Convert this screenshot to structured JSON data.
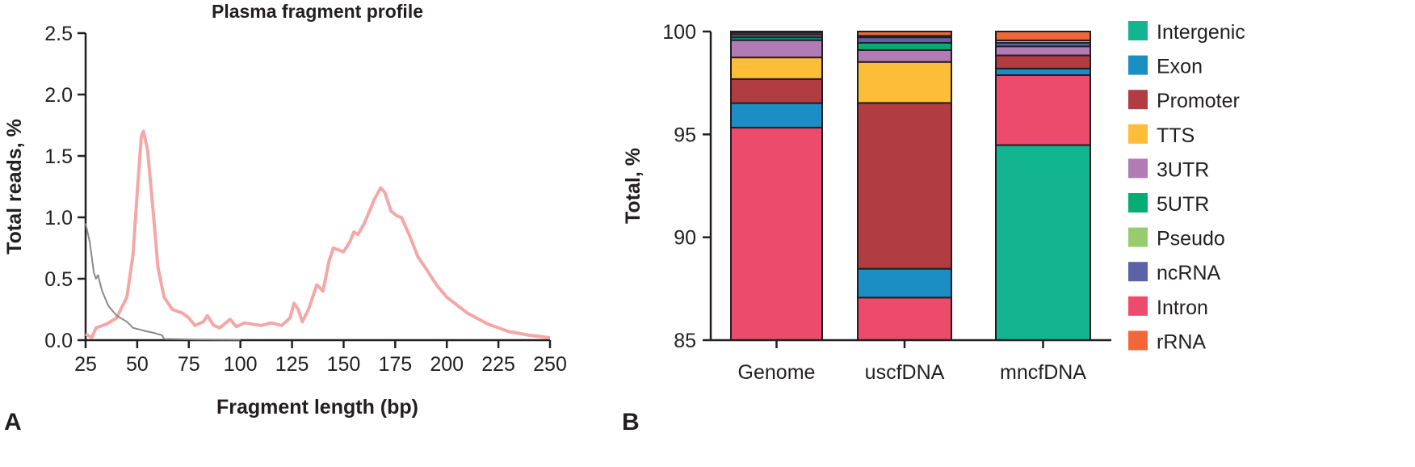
{
  "chart_data": [
    {
      "panel": "A",
      "type": "line",
      "title": "Plasma fragment profile",
      "xlabel": "Fragment length (bp)",
      "ylabel": "Total reads, %",
      "xlim": [
        25,
        250
      ],
      "ylim": [
        0,
        2.5
      ],
      "xticks": [
        "25",
        "50",
        "75",
        "100",
        "125",
        "150",
        "175",
        "200",
        "225",
        "250"
      ],
      "yticks": [
        "0.0",
        "0.5",
        "1.0",
        "1.5",
        "2.0",
        "2.5"
      ],
      "grid": false,
      "series": [
        {
          "color": "#f4a7a7",
          "x": [
            25,
            27,
            28,
            30,
            35,
            40,
            45,
            48,
            50,
            52,
            53,
            55,
            58,
            60,
            63,
            67,
            72,
            75,
            78,
            82,
            84,
            87,
            90,
            95,
            98,
            102,
            110,
            115,
            120,
            124,
            126,
            128,
            130,
            133,
            137,
            140,
            143,
            145,
            150,
            153,
            155,
            157,
            160,
            165,
            168,
            170,
            173,
            176,
            178,
            182,
            186,
            190,
            195,
            200,
            210,
            220,
            230,
            240,
            250
          ],
          "y": [
            0.05,
            0.03,
            0.02,
            0.1,
            0.13,
            0.18,
            0.35,
            0.7,
            1.2,
            1.66,
            1.7,
            1.55,
            1.0,
            0.6,
            0.35,
            0.25,
            0.22,
            0.18,
            0.12,
            0.15,
            0.2,
            0.12,
            0.1,
            0.17,
            0.11,
            0.14,
            0.12,
            0.14,
            0.12,
            0.18,
            0.3,
            0.25,
            0.15,
            0.25,
            0.45,
            0.4,
            0.65,
            0.75,
            0.72,
            0.8,
            0.88,
            0.86,
            0.95,
            1.15,
            1.24,
            1.2,
            1.05,
            1.01,
            1.0,
            0.85,
            0.68,
            0.58,
            0.45,
            0.35,
            0.22,
            0.13,
            0.07,
            0.04,
            0.02
          ]
        },
        {
          "color": "#8a8a8a",
          "x": [
            25,
            27,
            29,
            30,
            31,
            33,
            36,
            40,
            45,
            48,
            55,
            58,
            60,
            62,
            63,
            80,
            100
          ],
          "y": [
            0.95,
            0.8,
            0.55,
            0.5,
            0.53,
            0.4,
            0.28,
            0.2,
            0.15,
            0.1,
            0.07,
            0.06,
            0.05,
            0.04,
            0.01,
            0.005,
            0.003
          ]
        }
      ]
    },
    {
      "panel": "B",
      "type": "bar",
      "stacked": true,
      "ylabel": "Total, %",
      "ylim": [
        85,
        100
      ],
      "yticks": [
        "85",
        "90",
        "95",
        "100"
      ],
      "categories": [
        "Genome",
        "uscfDNA",
        "mncfDNA"
      ],
      "legend_position": "right",
      "legend": [
        {
          "name": "Intergenic",
          "color": "#12b590"
        },
        {
          "name": "Exon",
          "color": "#1b8ec4"
        },
        {
          "name": "Promoter",
          "color": "#b13d43"
        },
        {
          "name": "TTS",
          "color": "#fcbd39"
        },
        {
          "name": "3UTR",
          "color": "#b17bb6"
        },
        {
          "name": "5UTR",
          "color": "#05ad74"
        },
        {
          "name": "Pseudo",
          "color": "#96cc6e"
        },
        {
          "name": "ncRNA",
          "color": "#5b62a8"
        },
        {
          "name": "Intron",
          "color": "#ec4b6c"
        },
        {
          "name": "rRNA",
          "color": "#f26738"
        }
      ],
      "stack_order": [
        "Intergenic",
        "Intron",
        "Exon",
        "Promoter",
        "TTS",
        "3UTR",
        "5UTR",
        "ncRNA",
        "Pseudo",
        "rRNA"
      ],
      "stack_tops": {
        "Genome": {
          "Intergenic": null,
          "Intron": 95.33,
          "Exon": 96.52,
          "Promoter": 97.69,
          "TTS": 98.74,
          "3UTR": 99.58,
          "5UTR": 99.72,
          "ncRNA": 99.86,
          "Pseudo": 99.95,
          "rRNA": 100
        },
        "uscfDNA": {
          "Intergenic": null,
          "Intron": 87.07,
          "Exon": 88.47,
          "Promoter": 96.53,
          "TTS": 98.52,
          "3UTR": 99.1,
          "5UTR": 99.45,
          "ncRNA": 99.72,
          "Pseudo": 99.79,
          "rRNA": 100
        },
        "mncfDNA": {
          "Intergenic": 94.48,
          "Intron": 97.88,
          "Exon": 98.2,
          "Promoter": 98.84,
          "TTS": 98.84,
          "3UTR": 99.28,
          "5UTR": 99.28,
          "ncRNA": 99.45,
          "Pseudo": 99.57,
          "rRNA": 100
        }
      }
    }
  ],
  "labels": {
    "panel_a": "A",
    "panel_b": "B"
  }
}
